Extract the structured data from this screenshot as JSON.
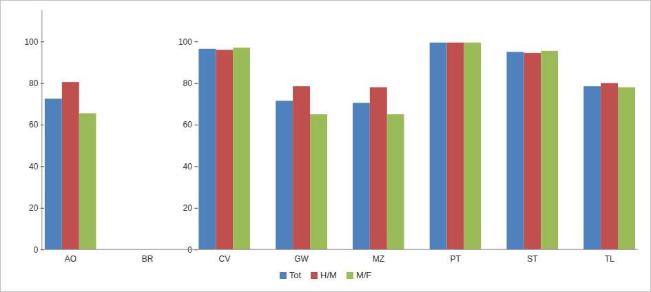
{
  "chart_data": {
    "type": "bar",
    "categories": [
      "AO",
      "BR",
      "CV",
      "GW",
      "MZ",
      "PT",
      "ST",
      "TL"
    ],
    "series": [
      {
        "name": "Tot",
        "color": "#4f81bd",
        "values": [
          72.5,
          null,
          96.5,
          71.5,
          70.5,
          99.5,
          95,
          78.5
        ]
      },
      {
        "name": "H/M",
        "color": "#c0504d",
        "values": [
          80.5,
          null,
          96,
          78.5,
          78,
          99.5,
          94.5,
          80
        ]
      },
      {
        "name": "M/F",
        "color": "#9bbb59",
        "values": [
          65.5,
          null,
          97,
          65,
          65,
          99.5,
          95.5,
          78
        ]
      }
    ],
    "ylim": [
      0,
      115
    ],
    "yticks": [
      0,
      20,
      40,
      60,
      80,
      100
    ],
    "grid": false,
    "legend": "bottom"
  }
}
